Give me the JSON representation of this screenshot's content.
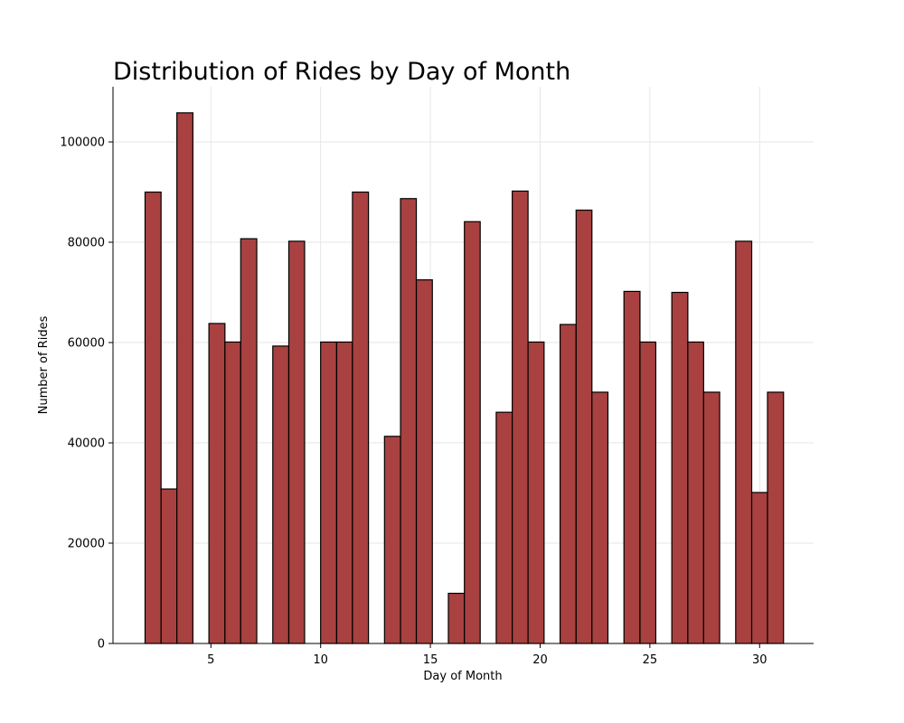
{
  "chart_data": {
    "type": "bar",
    "title": "Distribution of Rides by Day of Month",
    "xlabel": "Day of Month",
    "ylabel": "Number of Rides",
    "xlim": [
      0.54,
      32.46
    ],
    "ylim": [
      0,
      111000
    ],
    "xticks": [
      5,
      10,
      15,
      20,
      25,
      30
    ],
    "yticks": [
      0,
      20000,
      40000,
      60000,
      80000,
      100000
    ],
    "grid": true,
    "bar_color": "#a84140",
    "edge_color": "#000000",
    "bins": [
      {
        "x0": 2.0,
        "x1": 2.73,
        "value": 90000
      },
      {
        "x0": 2.73,
        "x1": 3.45,
        "value": 30800
      },
      {
        "x0": 3.45,
        "x1": 4.18,
        "value": 105800
      },
      {
        "x0": 4.18,
        "x1": 4.91,
        "value": 0
      },
      {
        "x0": 4.91,
        "x1": 5.64,
        "value": 63800
      },
      {
        "x0": 5.64,
        "x1": 6.36,
        "value": 60100
      },
      {
        "x0": 6.36,
        "x1": 7.09,
        "value": 80700
      },
      {
        "x0": 7.09,
        "x1": 7.82,
        "value": 0
      },
      {
        "x0": 7.82,
        "x1": 8.55,
        "value": 59300
      },
      {
        "x0": 8.55,
        "x1": 9.27,
        "value": 80200
      },
      {
        "x0": 9.27,
        "x1": 10.0,
        "value": 0
      },
      {
        "x0": 10.0,
        "x1": 10.73,
        "value": 60100
      },
      {
        "x0": 10.73,
        "x1": 11.45,
        "value": 60100
      },
      {
        "x0": 11.45,
        "x1": 12.18,
        "value": 90000
      },
      {
        "x0": 12.18,
        "x1": 12.91,
        "value": 0
      },
      {
        "x0": 12.91,
        "x1": 13.64,
        "value": 41300
      },
      {
        "x0": 13.64,
        "x1": 14.36,
        "value": 88700
      },
      {
        "x0": 14.36,
        "x1": 15.09,
        "value": 72500
      },
      {
        "x0": 15.09,
        "x1": 15.82,
        "value": 0
      },
      {
        "x0": 15.82,
        "x1": 16.55,
        "value": 10000
      },
      {
        "x0": 16.55,
        "x1": 17.27,
        "value": 84100
      },
      {
        "x0": 17.27,
        "x1": 18.0,
        "value": 0
      },
      {
        "x0": 18.0,
        "x1": 18.73,
        "value": 46100
      },
      {
        "x0": 18.73,
        "x1": 19.45,
        "value": 90200
      },
      {
        "x0": 19.45,
        "x1": 20.18,
        "value": 60100
      },
      {
        "x0": 20.18,
        "x1": 20.91,
        "value": 0
      },
      {
        "x0": 20.91,
        "x1": 21.64,
        "value": 63600
      },
      {
        "x0": 21.64,
        "x1": 22.36,
        "value": 86400
      },
      {
        "x0": 22.36,
        "x1": 23.09,
        "value": 50100
      },
      {
        "x0": 23.09,
        "x1": 23.82,
        "value": 0
      },
      {
        "x0": 23.82,
        "x1": 24.55,
        "value": 70200
      },
      {
        "x0": 24.55,
        "x1": 25.27,
        "value": 60100
      },
      {
        "x0": 25.27,
        "x1": 26.0,
        "value": 0
      },
      {
        "x0": 26.0,
        "x1": 26.73,
        "value": 70000
      },
      {
        "x0": 26.73,
        "x1": 27.45,
        "value": 60100
      },
      {
        "x0": 27.45,
        "x1": 28.18,
        "value": 50100
      },
      {
        "x0": 28.18,
        "x1": 28.91,
        "value": 0
      },
      {
        "x0": 28.91,
        "x1": 29.64,
        "value": 80200
      },
      {
        "x0": 29.64,
        "x1": 30.36,
        "value": 30100
      },
      {
        "x0": 30.36,
        "x1": 31.09,
        "value": 50100
      }
    ]
  }
}
